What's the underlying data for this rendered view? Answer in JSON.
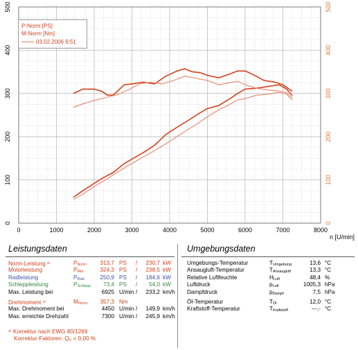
{
  "chart_data": {
    "type": "line",
    "xlabel": "n [U/min]",
    "x_ticks": [
      0,
      1000,
      2000,
      3000,
      4000,
      5000,
      6000,
      7000,
      8000
    ],
    "xlim": [
      0,
      8000
    ],
    "y_left_ticks": [
      0,
      100,
      200,
      300,
      400,
      500
    ],
    "y_right_ticks": [
      0,
      100,
      200,
      300,
      400,
      500
    ],
    "ylim": [
      0,
      500
    ],
    "grid": true,
    "legend": {
      "position": "top-left",
      "entries": [
        "P-Norm [PS]",
        "M-Norm [Nm]",
        "03.02.2006 9:51"
      ]
    },
    "series": [
      {
        "name": "P-Norm [PS]",
        "color": "#d2401a",
        "x": [
          1450,
          1700,
          2000,
          2200,
          2500,
          2800,
          3000,
          3300,
          3600,
          3900,
          4200,
          4500,
          4800,
          5000,
          5300,
          5600,
          5800,
          6000,
          6300,
          6600,
          6900,
          7100,
          7250
        ],
        "y": [
          60,
          75,
          92,
          103,
          117,
          138,
          148,
          163,
          180,
          205,
          222,
          238,
          255,
          265,
          272,
          288,
          300,
          310,
          312,
          316,
          320,
          310,
          295
        ]
      },
      {
        "name": "M-Norm [Nm]",
        "color": "#d2401a",
        "x": [
          1450,
          1700,
          2000,
          2200,
          2350,
          2500,
          2650,
          2800,
          3000,
          3300,
          3600,
          3900,
          4200,
          4400,
          4600,
          4800,
          5000,
          5300,
          5600,
          5800,
          6000,
          6200,
          6500,
          6800,
          7000,
          7250
        ],
        "y": [
          300,
          310,
          310,
          305,
          296,
          296,
          308,
          320,
          322,
          326,
          322,
          340,
          352,
          357,
          350,
          348,
          342,
          336,
          345,
          352,
          352,
          344,
          330,
          326,
          320,
          305
        ]
      },
      {
        "name": "P-Norm [PS] 03.02.2006 9:51",
        "color": "#e8826a",
        "x": [
          1450,
          1700,
          2000,
          2300,
          2600,
          2900,
          3200,
          3500,
          3800,
          4100,
          4400,
          4700,
          5000,
          5300,
          5600,
          5800,
          6000,
          6300,
          6600,
          6900,
          7100,
          7250
        ],
        "y": [
          55,
          67,
          85,
          100,
          117,
          133,
          148,
          163,
          178,
          195,
          212,
          228,
          246,
          262,
          275,
          285,
          288,
          296,
          298,
          303,
          298,
          285
        ]
      },
      {
        "name": "M-Norm [Nm] 03.02.2006 9:51",
        "color": "#e8826a",
        "x": [
          1450,
          1700,
          2000,
          2300,
          2600,
          2900,
          3200,
          3500,
          3800,
          4100,
          4400,
          4700,
          5000,
          5300,
          5600,
          5800,
          6000,
          6300,
          6600,
          6900,
          7100,
          7250
        ],
        "y": [
          268,
          276,
          284,
          290,
          297,
          308,
          322,
          326,
          322,
          330,
          340,
          335,
          330,
          320,
          325,
          328,
          320,
          312,
          308,
          306,
          302,
          290
        ]
      }
    ]
  },
  "leistung": {
    "title": "Leistungsdaten",
    "rows": [
      {
        "label": "Norm-Leistung ¹⁾",
        "sym": "P",
        "sub": "Norm",
        "v1": "313,7",
        "u1": "PS",
        "sep": "/",
        "v2": "230,7",
        "u2": "kW",
        "color": "red"
      },
      {
        "label": "Motorleistung",
        "sym": "P",
        "sub": "Mot",
        "v1": "324,3",
        "u1": "PS",
        "sep": "/",
        "v2": "238,5",
        "u2": "kW",
        "color": "red"
      },
      {
        "label": "Radleistung",
        "sym": "P",
        "sub": "Rad",
        "v1": "250,9",
        "u1": "PS",
        "sep": "/",
        "v2": "184,6",
        "u2": "kW",
        "color": "blue"
      },
      {
        "label": "Schleppleistung",
        "sym": "P",
        "sub": "Schlepp",
        "v1": "73,4",
        "u1": "PS",
        "sep": "/",
        "v2": "54,0",
        "u2": "kW",
        "color": "green"
      },
      {
        "label": "Max. Leistung bei",
        "sym": "",
        "sub": "",
        "v1": "6925",
        "u1": "U/min",
        "sep": "/",
        "v2": "233,2",
        "u2": "km/h",
        "color": ""
      },
      {
        "label": "Drehmoment ¹⁾",
        "sym": "M",
        "sub": "Norm",
        "v1": "357,3",
        "u1": "Nm",
        "sep": "",
        "v2": "",
        "u2": "",
        "color": "red"
      },
      {
        "label": "Max. Drehmoment bei",
        "sym": "",
        "sub": "",
        "v1": "4450",
        "u1": "U/min",
        "sep": "/",
        "v2": "149,9",
        "u2": "km/h",
        "color": ""
      },
      {
        "label": "Max. erreichte Drehzahl",
        "sym": "",
        "sub": "",
        "v1": "7300",
        "u1": "U/min",
        "sep": "/",
        "v2": "245,9",
        "u2": "km/h",
        "color": ""
      }
    ],
    "footnote1": "¹⁾ Korrektur nach EWG 80/1269",
    "footnote2_label": "Korrektur-Faktoren:",
    "footnote2_sym": "Q",
    "footnote2_sub": "V",
    "footnote2_value": "=   0,00 %"
  },
  "umgebung": {
    "title": "Umgebungsdaten",
    "rows": [
      {
        "label": "Umgebungs-Temperatur",
        "sym": "T",
        "sub": "Umgebung",
        "val": "13,6",
        "unit": "°C"
      },
      {
        "label": "Ansaugluft-Temperatur",
        "sym": "T",
        "sub": "Ansaugluft",
        "val": "13,3",
        "unit": "°C"
      },
      {
        "label": "Relative Luftfeuchte",
        "sym": "H",
        "sub": "Luft",
        "val": "48,4",
        "unit": "%"
      },
      {
        "label": "Luftdruck",
        "sym": "p",
        "sub": "Luft",
        "val": "1005,3",
        "unit": "hPa"
      },
      {
        "label": "Dampfdruck",
        "sym": "p",
        "sub": "Dampf",
        "val": "7,5",
        "unit": "hPa"
      },
      {
        "label": "Öl-Temperatur",
        "sym": "T",
        "sub": "Öl",
        "val": "12,0",
        "unit": "°C"
      },
      {
        "label": "Kraftstoff-Temperatur",
        "sym": "T",
        "sub": "Kraftstoff",
        "val": "---,-",
        "unit": "°C"
      }
    ]
  }
}
